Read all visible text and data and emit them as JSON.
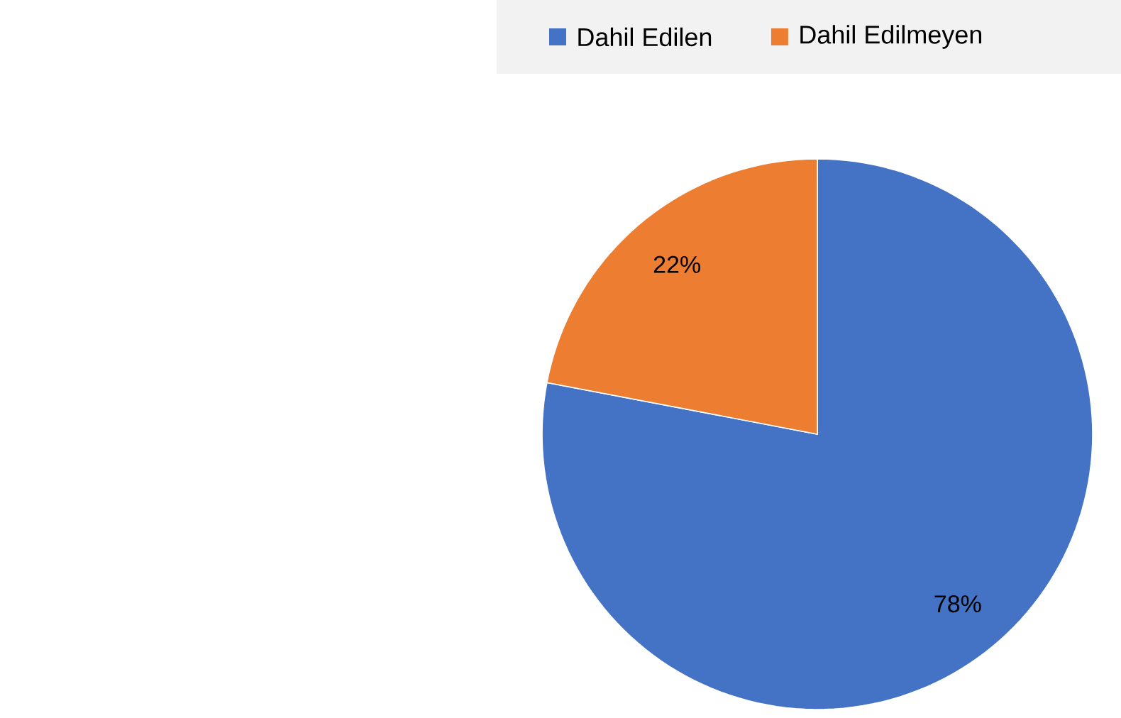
{
  "chart_data": {
    "type": "pie",
    "categories": [
      "Dahil Edilen",
      "Dahil Edilmeyen"
    ],
    "values": [
      78,
      22
    ],
    "colors": [
      "#4472c4",
      "#ed7d31"
    ],
    "value_labels": [
      "78%",
      "22%"
    ],
    "legend": "top"
  }
}
